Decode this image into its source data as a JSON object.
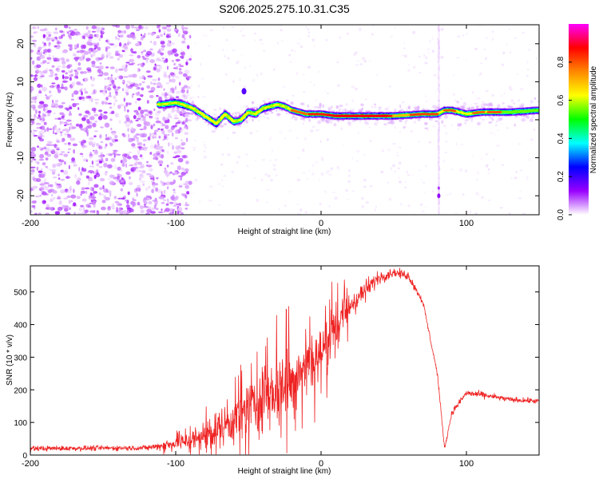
{
  "title": "S206.2025.275.10.31.C35",
  "chart_data": [
    {
      "type": "heatmap",
      "xlabel": "Height of straight line (km)",
      "ylabel": "Frequency (Hz)",
      "xlim": [
        -200,
        150
      ],
      "ylim": [
        -25,
        25
      ],
      "x_ticks": [
        -200,
        -100,
        0,
        100
      ],
      "y_ticks": [
        -20,
        -10,
        0,
        10,
        20
      ],
      "colorbar": {
        "label": "Normalized spectral amplitude",
        "range": [
          0,
          1
        ],
        "ticks": [
          "0.0",
          "0.2",
          "0.4",
          "0.6",
          "0.8"
        ],
        "colors": [
          "#ffffff",
          "#9900ff",
          "#0000ff",
          "#00ffff",
          "#00ff00",
          "#ffff00",
          "#ff8800",
          "#ff0000",
          "#ff00ff"
        ]
      },
      "ridge": {
        "x": [
          -110,
          -100,
          -95,
          -88,
          -80,
          -72,
          -66,
          -60,
          -55,
          -50,
          -45,
          -40,
          -35,
          -30,
          -25,
          -20,
          -10,
          0,
          10,
          30,
          50,
          70,
          80,
          85,
          90,
          100,
          110,
          130,
          150
        ],
        "y": [
          4,
          4.5,
          4,
          3,
          1,
          -1,
          1.5,
          -0.5,
          0,
          2,
          1.5,
          3,
          3.5,
          4,
          3.5,
          2.5,
          1.5,
          1.5,
          1,
          1,
          1,
          1.5,
          1.5,
          2.5,
          2.5,
          1.5,
          2,
          2,
          2.5
        ]
      },
      "vertical_streak_x": 81
    },
    {
      "type": "line",
      "xlabel": "Height of straight line (km)",
      "ylabel": "SNR (10 * v/v)",
      "xlim": [
        -200,
        150
      ],
      "ylim": [
        0,
        580
      ],
      "x_ticks": [
        -200,
        -100,
        0,
        100
      ],
      "y_ticks": [
        0,
        100,
        200,
        300,
        400,
        500
      ],
      "color": "#ee2222",
      "envelope": {
        "x": [
          -200,
          -120,
          -100,
          -80,
          -60,
          -40,
          -20,
          0,
          20,
          40,
          50,
          60,
          70,
          80,
          85,
          90,
          100,
          110,
          130,
          150
        ],
        "center": [
          20,
          22,
          35,
          60,
          110,
          170,
          240,
          320,
          460,
          545,
          560,
          550,
          470,
          250,
          20,
          130,
          190,
          185,
          170,
          165
        ],
        "amplitude": [
          12,
          12,
          30,
          60,
          100,
          140,
          150,
          120,
          70,
          30,
          20,
          20,
          15,
          12,
          8,
          15,
          15,
          15,
          12,
          12
        ]
      }
    }
  ]
}
